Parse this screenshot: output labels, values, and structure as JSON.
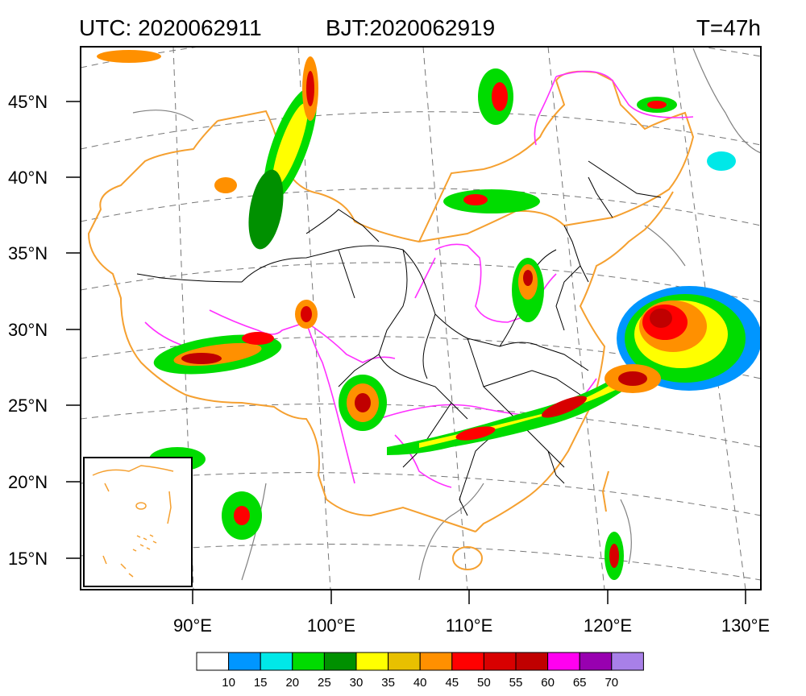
{
  "header": {
    "utc": "UTC: 2020062911",
    "bjt": "BJT:2020062919",
    "forecast_hour": "T=47h"
  },
  "map": {
    "lat_labels": [
      "45°N",
      "40°N",
      "35°N",
      "30°N",
      "25°N",
      "20°N",
      "15°N"
    ],
    "lon_labels": [
      "90°E",
      "100°E",
      "110°E",
      "120°E",
      "130°E"
    ],
    "inset": "South China Sea islands inset"
  },
  "colorbar": {
    "labels": [
      "10",
      "15",
      "20",
      "25",
      "30",
      "35",
      "40",
      "45",
      "50",
      "55",
      "60",
      "65",
      "70"
    ],
    "colors": [
      "#ffffff",
      "#0096ff",
      "#00e8e8",
      "#00dc00",
      "#009000",
      "#ffff00",
      "#e8c000",
      "#ff9000",
      "#ff0000",
      "#d80000",
      "#c00000",
      "#ff00f0",
      "#9800b0",
      "#a880e8"
    ]
  },
  "colors": {
    "province_border": "#000000",
    "national_border": "#f5a030",
    "river": "#ff40ff",
    "coast": "#808080"
  }
}
